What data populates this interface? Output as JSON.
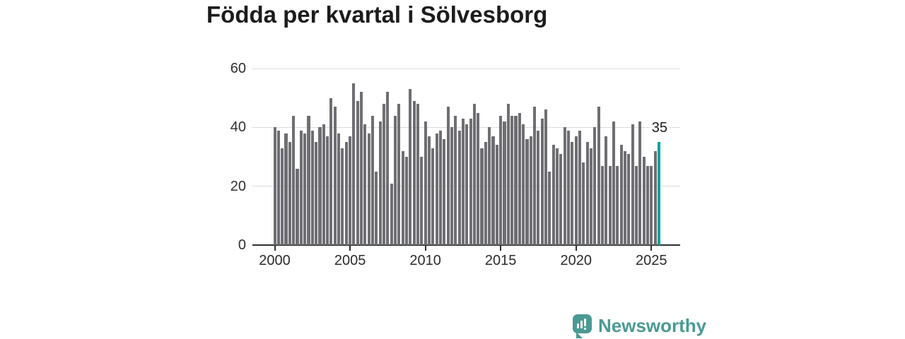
{
  "title": "Födda per kvartal i Sölvesborg",
  "chart_data": {
    "type": "bar",
    "title": "Födda per kvartal i Sölvesborg",
    "x_unit": "quarter",
    "x_start": "2000 Q1",
    "x_end": "2025 Q3",
    "values": [
      40,
      39,
      33,
      38,
      35,
      44,
      26,
      39,
      38,
      44,
      39,
      35,
      40,
      41,
      37,
      50,
      47,
      38,
      33,
      35,
      37,
      55,
      49,
      52,
      41,
      38,
      44,
      25,
      42,
      48,
      52,
      21,
      44,
      48,
      32,
      30,
      53,
      49,
      48,
      30,
      42,
      37,
      33,
      38,
      39,
      36,
      47,
      40,
      44,
      39,
      43,
      41,
      43,
      48,
      45,
      33,
      35,
      40,
      37,
      34,
      44,
      42,
      48,
      44,
      44,
      45,
      41,
      36,
      37,
      47,
      39,
      43,
      46,
      25,
      34,
      33,
      31,
      40,
      39,
      35,
      37,
      39,
      28,
      35,
      33,
      40,
      47,
      27,
      37,
      27,
      42,
      27,
      34,
      32,
      31,
      41,
      27,
      42,
      30,
      27,
      27,
      32,
      35
    ],
    "y_ticks": [
      0,
      20,
      40,
      60
    ],
    "ylim": [
      0,
      60
    ],
    "x_tick_labels": [
      "2000",
      "2005",
      "2010",
      "2015",
      "2020",
      "2025"
    ],
    "grid": "horizontal",
    "legend": "none",
    "bar_color": "#6e6e73",
    "highlight_color": "#00a49a",
    "highlight": {
      "label": "35",
      "value": 35,
      "position": "last-bar"
    }
  },
  "logo": {
    "text": "Newsworthy",
    "color": "#4a9a94",
    "icon": "bar-chart-speech-bubble-icon"
  }
}
